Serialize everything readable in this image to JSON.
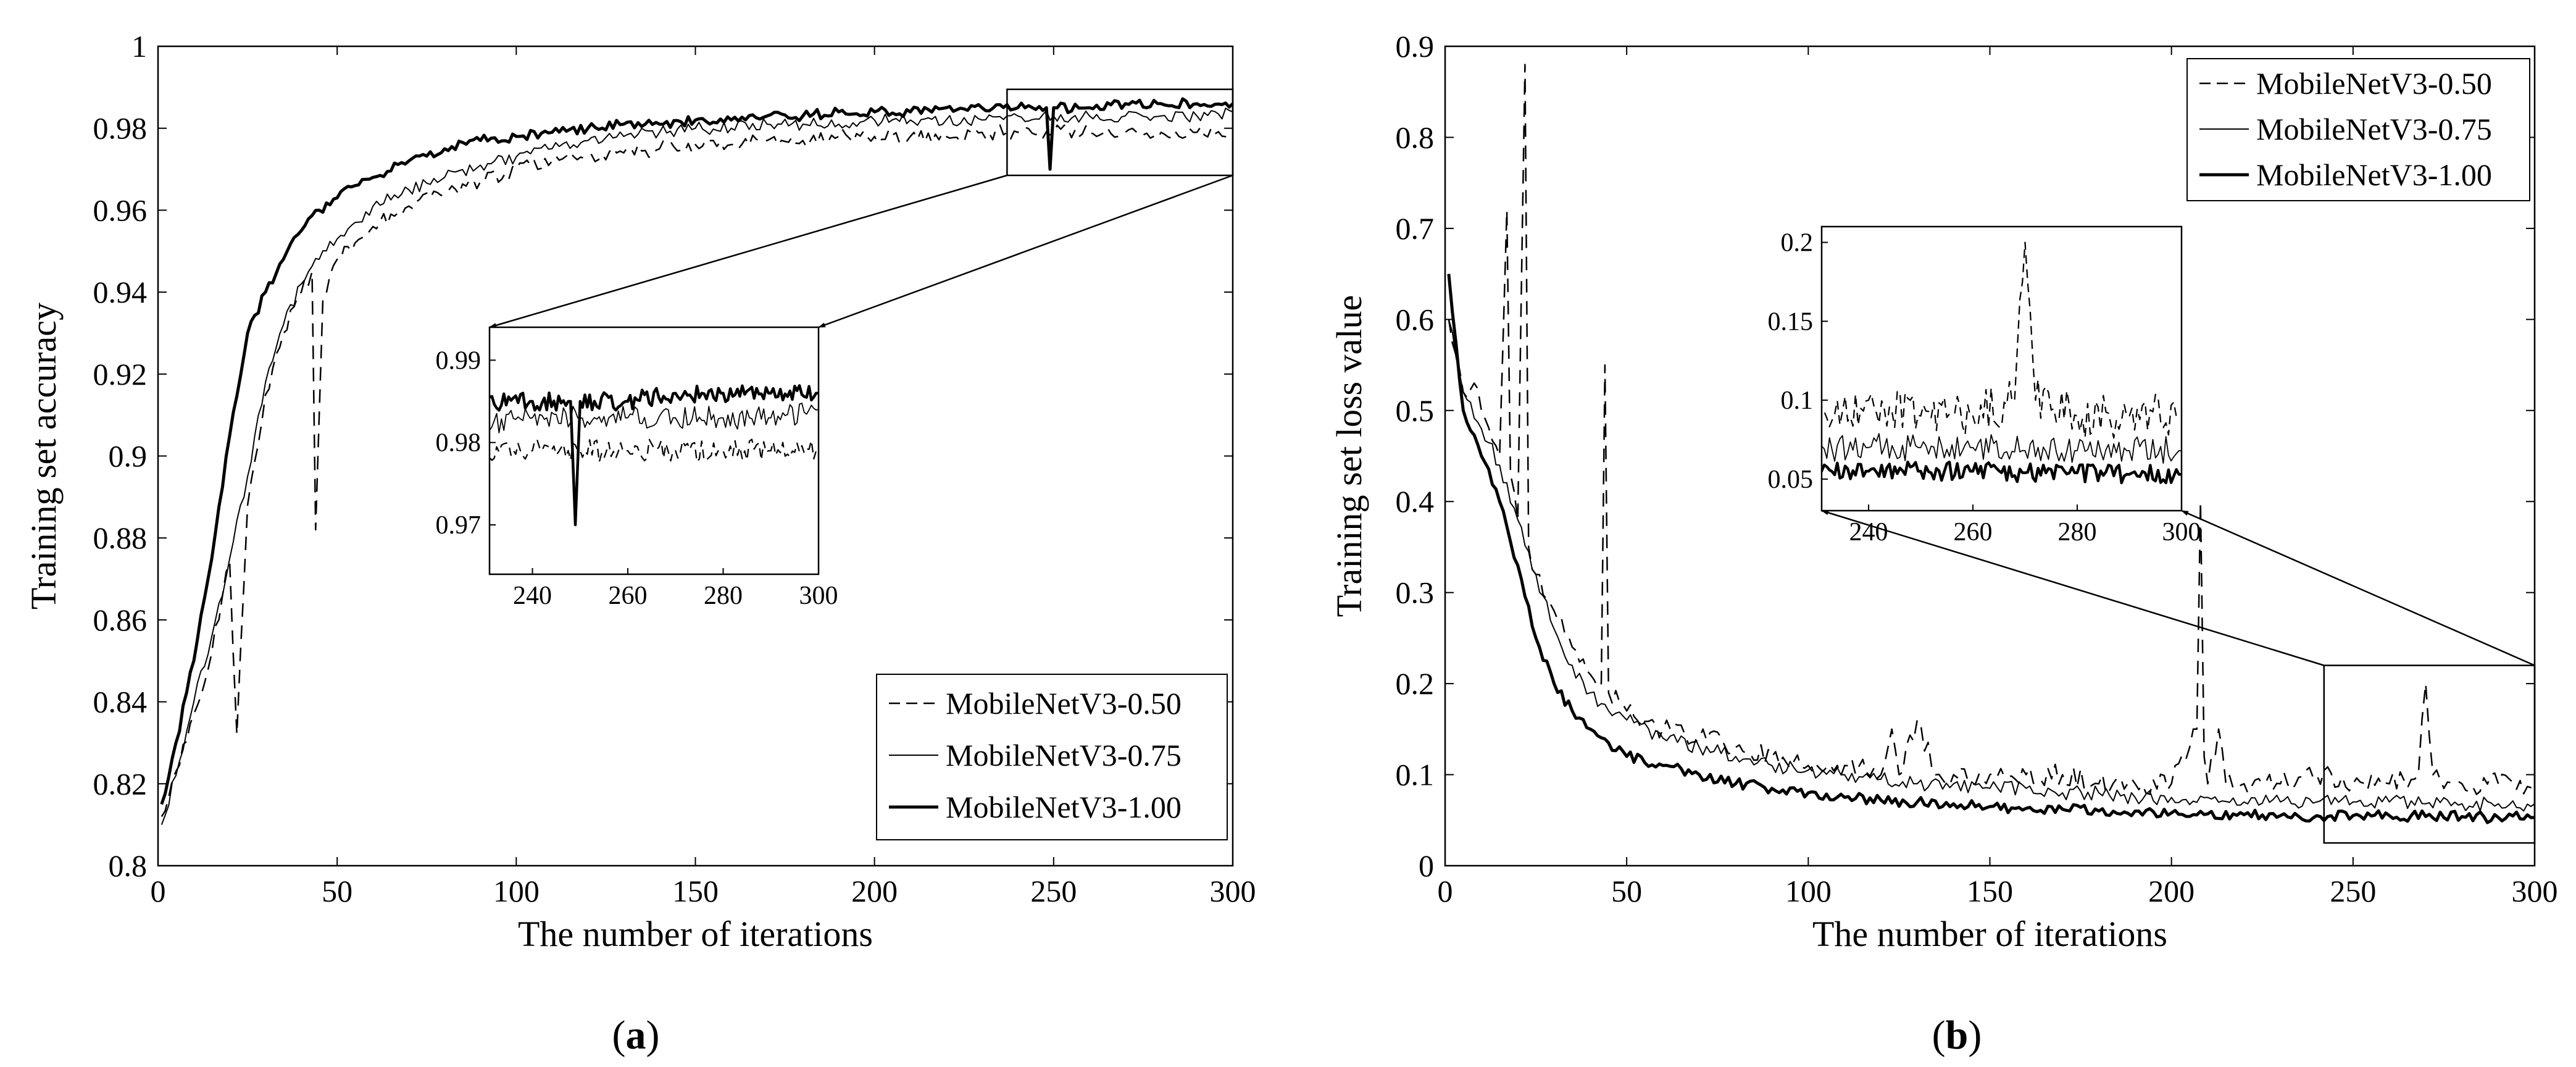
{
  "figure": {
    "panels": [
      {
        "id": "a",
        "caption_open": "(",
        "caption_letter": "a",
        "caption_close": ")"
      },
      {
        "id": "b",
        "caption_open": "(",
        "caption_letter": "b",
        "caption_close": ")"
      }
    ]
  },
  "chart_data": [
    {
      "type": "line",
      "panel": "a",
      "title": "",
      "xlabel": "The number of iterations",
      "ylabel": "Training set accuracy",
      "xlim": [
        0,
        300
      ],
      "ylim": [
        0.8,
        1.0
      ],
      "xticks": [
        0,
        50,
        100,
        150,
        200,
        250,
        300
      ],
      "xtick_labels": [
        "0",
        "50",
        "100",
        "150",
        "200",
        "250",
        "300"
      ],
      "yticks": [
        0.8,
        0.82,
        0.84,
        0.86,
        0.88,
        0.9,
        0.92,
        0.94,
        0.96,
        0.98,
        1.0
      ],
      "ytick_labels": [
        "0.8",
        "0.82",
        "0.84",
        "0.86",
        "0.88",
        "0.9",
        "0.92",
        "0.94",
        "0.96",
        "0.98",
        "1"
      ],
      "legend_position": "bottom-right",
      "series": [
        {
          "name": "MobileNetV3-0.50",
          "style": "dashed",
          "x": [
            1,
            5,
            10,
            15,
            18,
            20,
            22,
            25,
            30,
            35,
            40,
            43,
            44,
            46,
            50,
            55,
            60,
            70,
            80,
            90,
            100,
            110,
            120,
            130,
            140,
            150,
            160,
            170,
            180,
            190,
            200,
            210,
            220,
            230,
            240,
            250,
            260,
            270,
            280,
            290,
            300
          ],
          "y": [
            0.812,
            0.823,
            0.837,
            0.852,
            0.866,
            0.874,
            0.832,
            0.888,
            0.915,
            0.93,
            0.94,
            0.945,
            0.882,
            0.938,
            0.948,
            0.952,
            0.956,
            0.961,
            0.964,
            0.967,
            0.97,
            0.972,
            0.973,
            0.974,
            0.975,
            0.976,
            0.976,
            0.977,
            0.977,
            0.978,
            0.978,
            0.978,
            0.978,
            0.979,
            0.979,
            0.979,
            0.979,
            0.979,
            0.979,
            0.979,
            0.979
          ]
        },
        {
          "name": "MobileNetV3-0.75",
          "style": "thin",
          "x": [
            1,
            5,
            10,
            15,
            20,
            25,
            30,
            35,
            40,
            45,
            50,
            55,
            60,
            70,
            80,
            90,
            100,
            110,
            120,
            130,
            140,
            150,
            160,
            170,
            180,
            190,
            200,
            210,
            220,
            230,
            240,
            250,
            260,
            270,
            280,
            290,
            300
          ],
          "y": [
            0.81,
            0.822,
            0.84,
            0.856,
            0.875,
            0.895,
            0.918,
            0.932,
            0.942,
            0.948,
            0.953,
            0.957,
            0.961,
            0.965,
            0.968,
            0.971,
            0.973,
            0.975,
            0.977,
            0.978,
            0.979,
            0.98,
            0.98,
            0.981,
            0.981,
            0.981,
            0.982,
            0.982,
            0.982,
            0.982,
            0.983,
            0.983,
            0.983,
            0.983,
            0.983,
            0.983,
            0.984
          ]
        },
        {
          "name": "MobileNetV3-1.00",
          "style": "thick",
          "x": [
            1,
            5,
            10,
            15,
            20,
            25,
            30,
            35,
            40,
            45,
            50,
            55,
            60,
            70,
            80,
            90,
            100,
            110,
            120,
            130,
            140,
            150,
            160,
            170,
            180,
            190,
            200,
            210,
            220,
            230,
            240,
            248,
            249,
            250,
            260,
            270,
            280,
            290,
            300
          ],
          "y": [
            0.815,
            0.83,
            0.85,
            0.875,
            0.905,
            0.93,
            0.94,
            0.948,
            0.955,
            0.96,
            0.963,
            0.966,
            0.968,
            0.972,
            0.975,
            0.977,
            0.978,
            0.979,
            0.98,
            0.981,
            0.981,
            0.982,
            0.982,
            0.983,
            0.983,
            0.984,
            0.984,
            0.984,
            0.985,
            0.985,
            0.985,
            0.985,
            0.97,
            0.985,
            0.985,
            0.986,
            0.986,
            0.986,
            0.986
          ]
        }
      ],
      "zoom_box": {
        "xlim": [
          237,
          300
        ],
        "ylim": [
          0.9685,
          0.9895
        ]
      },
      "inset": {
        "xlim": [
          231,
          300
        ],
        "ylim": [
          0.964,
          0.994
        ],
        "xticks": [
          240,
          260,
          280,
          300
        ],
        "xtick_labels": [
          "240",
          "260",
          "280",
          "300"
        ],
        "yticks": [
          0.97,
          0.98,
          0.99
        ],
        "ytick_labels": [
          "0.97",
          "0.98",
          "0.99"
        ]
      }
    },
    {
      "type": "line",
      "panel": "b",
      "title": "",
      "xlabel": "The number of iterations",
      "ylabel": "Training set loss value",
      "xlim": [
        0,
        300
      ],
      "ylim": [
        0,
        0.9
      ],
      "xticks": [
        0,
        50,
        100,
        150,
        200,
        250,
        300
      ],
      "xtick_labels": [
        "0",
        "50",
        "100",
        "150",
        "200",
        "250",
        "300"
      ],
      "yticks": [
        0,
        0.1,
        0.2,
        0.3,
        0.4,
        0.5,
        0.6,
        0.7,
        0.8,
        0.9
      ],
      "ytick_labels": [
        "0",
        "0.1",
        "0.2",
        "0.3",
        "0.4",
        "0.5",
        "0.6",
        "0.7",
        "0.8",
        "0.9"
      ],
      "legend_position": "top-right",
      "series": [
        {
          "name": "MobileNetV3-0.50",
          "style": "dashed",
          "x": [
            1,
            5,
            8,
            10,
            15,
            17,
            18,
            20,
            22,
            23,
            25,
            30,
            35,
            40,
            43,
            44,
            45,
            50,
            60,
            70,
            80,
            90,
            100,
            110,
            120,
            123,
            125,
            130,
            135,
            140,
            150,
            160,
            170,
            180,
            190,
            200,
            207,
            208,
            209,
            210,
            213,
            215,
            220,
            230,
            240,
            250,
            260,
            268,
            270,
            272,
            280,
            290,
            300
          ],
          "y": [
            0.6,
            0.52,
            0.53,
            0.5,
            0.45,
            0.72,
            0.43,
            0.38,
            0.88,
            0.35,
            0.32,
            0.28,
            0.24,
            0.21,
            0.2,
            0.55,
            0.19,
            0.17,
            0.15,
            0.14,
            0.13,
            0.12,
            0.11,
            0.11,
            0.1,
            0.15,
            0.1,
            0.16,
            0.1,
            0.1,
            0.1,
            0.1,
            0.1,
            0.09,
            0.09,
            0.09,
            0.15,
            0.4,
            0.12,
            0.09,
            0.15,
            0.09,
            0.09,
            0.09,
            0.1,
            0.09,
            0.09,
            0.1,
            0.2,
            0.1,
            0.09,
            0.09,
            0.09
          ]
        },
        {
          "name": "MobileNetV3-0.75",
          "style": "thin",
          "x": [
            1,
            5,
            10,
            15,
            20,
            25,
            30,
            35,
            40,
            45,
            50,
            60,
            70,
            80,
            90,
            100,
            110,
            120,
            130,
            140,
            150,
            160,
            170,
            180,
            190,
            200,
            210,
            220,
            230,
            240,
            250,
            260,
            270,
            280,
            290,
            300
          ],
          "y": [
            0.6,
            0.52,
            0.48,
            0.44,
            0.38,
            0.32,
            0.26,
            0.22,
            0.19,
            0.17,
            0.16,
            0.14,
            0.13,
            0.12,
            0.11,
            0.105,
            0.1,
            0.095,
            0.09,
            0.09,
            0.085,
            0.085,
            0.08,
            0.08,
            0.075,
            0.075,
            0.075,
            0.07,
            0.07,
            0.07,
            0.07,
            0.07,
            0.068,
            0.068,
            0.068,
            0.068
          ]
        },
        {
          "name": "MobileNetV3-1.00",
          "style": "thick",
          "x": [
            1,
            5,
            10,
            15,
            20,
            25,
            30,
            35,
            40,
            45,
            50,
            60,
            70,
            80,
            90,
            100,
            110,
            120,
            130,
            140,
            150,
            160,
            170,
            180,
            190,
            200,
            210,
            220,
            230,
            240,
            250,
            260,
            270,
            280,
            290,
            300
          ],
          "y": [
            0.65,
            0.5,
            0.45,
            0.4,
            0.33,
            0.25,
            0.2,
            0.17,
            0.15,
            0.135,
            0.12,
            0.11,
            0.1,
            0.09,
            0.085,
            0.08,
            0.075,
            0.072,
            0.07,
            0.068,
            0.065,
            0.063,
            0.062,
            0.06,
            0.06,
            0.058,
            0.057,
            0.056,
            0.055,
            0.055,
            0.055,
            0.055,
            0.054,
            0.054,
            0.053,
            0.053
          ]
        }
      ],
      "zoom_box": {
        "xlim": [
          242,
          300
        ],
        "ylim": [
          0.025,
          0.22
        ]
      },
      "inset": {
        "xlim": [
          231,
          300
        ],
        "ylim": [
          0.03,
          0.21
        ],
        "xticks": [
          240,
          260,
          280,
          300
        ],
        "xtick_labels": [
          "240",
          "260",
          "280",
          "300"
        ],
        "yticks": [
          0.05,
          0.1,
          0.15,
          0.2
        ],
        "ytick_labels": [
          "0.05",
          "0.1",
          "0.15",
          "0.2"
        ]
      }
    }
  ]
}
